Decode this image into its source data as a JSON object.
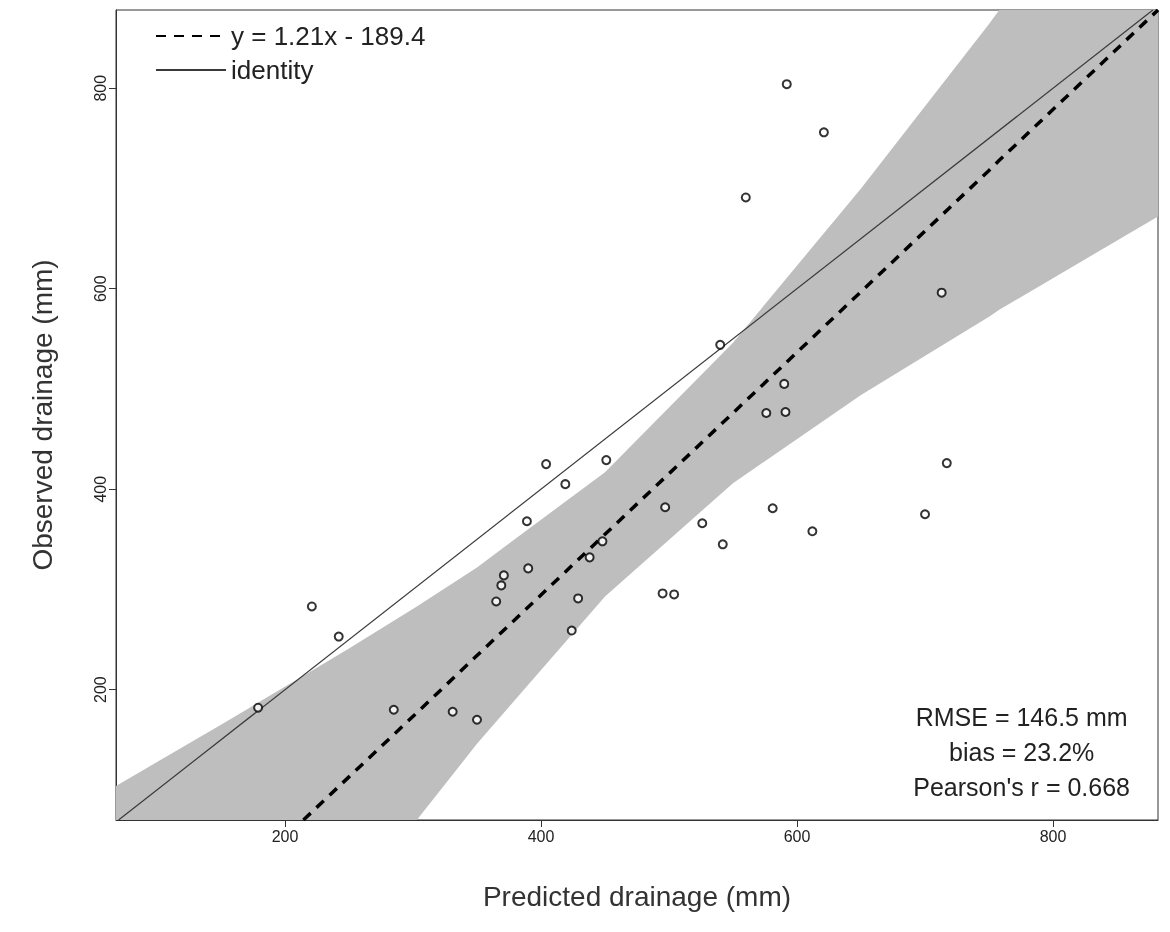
{
  "chart_data": {
    "type": "scatter",
    "xlabel": "Predicted drainage (mm)",
    "ylabel": "Observed drainage (mm)",
    "xlim": [
      68,
      882
    ],
    "ylim": [
      70,
      878
    ],
    "xticks": [
      200,
      400,
      600,
      800
    ],
    "yticks": [
      200,
      400,
      600,
      800
    ],
    "grid": false,
    "legend": "top left",
    "marker": "circle",
    "series": [
      {
        "color": "#000000",
        "x": [
          221,
          242,
          179,
          285,
          331,
          350,
          404,
          451,
          419,
          389,
          497,
          526,
          448,
          438,
          390,
          371,
          369,
          365,
          429,
          495,
          504,
          424,
          592,
          621,
          560,
          713,
          540,
          590,
          576,
          591,
          717,
          542,
          581,
          612,
          700
        ],
        "values": [
          283,
          253,
          182,
          180,
          178,
          170,
          425,
          429,
          405,
          368,
          382,
          366,
          348,
          332,
          321,
          314,
          304,
          288,
          291,
          296,
          295,
          259,
          804,
          756,
          691,
          596,
          544,
          505,
          476,
          477,
          426,
          345,
          381,
          358,
          375
        ]
      },
      {
        "type": "line",
        "name": "y = 1.21x - 189.4",
        "color": "#000000",
        "line_style": "dashed",
        "marker": "none",
        "x": [
          68,
          150,
          214.4,
          250,
          303,
          350,
          450,
          550,
          650,
          750,
          758,
          882
        ],
        "values": [
          null,
          null,
          70,
          113,
          177,
          234,
          355,
          476,
          597,
          718,
          728,
          878
        ],
        "lower": [
          70,
          70,
          70,
          70,
          70,
          146,
          293,
          406,
          494,
          572,
          579,
          672
        ],
        "upper": [
          104,
          165,
          214,
          241,
          283,
          322,
          417,
          546,
          700,
          864,
          878,
          878
        ]
      },
      {
        "type": "line",
        "name": "identity",
        "color": "#3a3a3a",
        "line_style": "solid",
        "marker": "none",
        "x": [
          70,
          878
        ],
        "values": [
          70,
          878
        ]
      }
    ],
    "annotations": [
      "RMSE = 146.5 mm",
      "bias = 23.2%",
      "Pearson's r = 0.668"
    ]
  }
}
